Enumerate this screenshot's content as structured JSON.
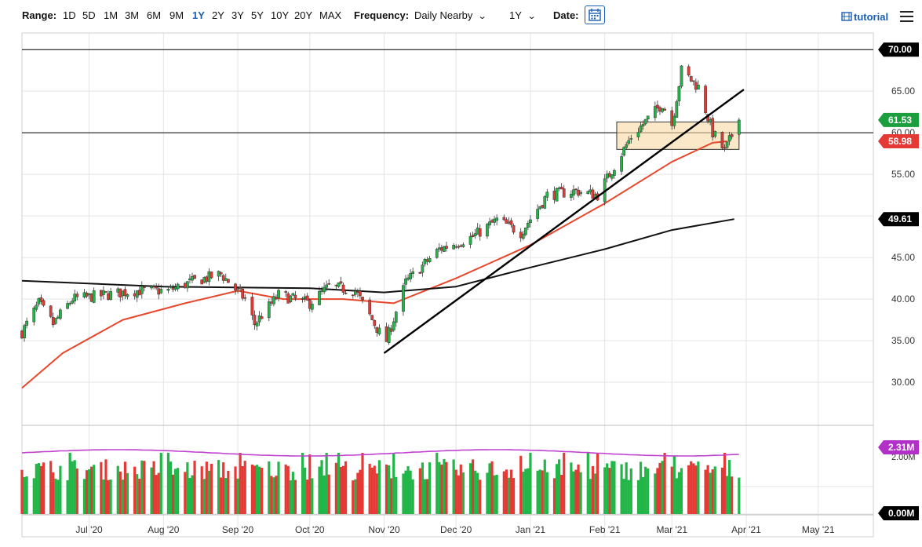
{
  "toolbar": {
    "range_label": "Range:",
    "ranges": [
      "1D",
      "5D",
      "1M",
      "3M",
      "6M",
      "9M",
      "1Y",
      "2Y",
      "3Y",
      "5Y",
      "10Y",
      "20Y",
      "MAX"
    ],
    "active_range": "1Y",
    "frequency_label": "Frequency:",
    "frequency_value": "Daily Nearby",
    "period_value": "1Y",
    "date_label": "Date:",
    "tutorial_label": "tutorial",
    "icons": [
      "calendar-icon",
      "chevron-down-icon",
      "film-icon",
      "menu-icon"
    ]
  },
  "chart_data": {
    "type": "candlestick",
    "y_axis": {
      "min": 25,
      "max": 72,
      "ticks": [
        30,
        35,
        40,
        45,
        50,
        55,
        60,
        65,
        70
      ],
      "tick_labels": [
        "30.00",
        "35.00",
        "40.00",
        "45.00",
        "50.00",
        "55.00",
        "60.00",
        "65.00",
        "70.00"
      ],
      "position": "right"
    },
    "x_axis": {
      "start_date": "2020-06-03",
      "end_date": "2021-05-24",
      "labels": [
        {
          "date": "2020-07-01",
          "text": "Jul '20"
        },
        {
          "date": "2020-08-01",
          "text": "Aug '20"
        },
        {
          "date": "2020-09-01",
          "text": "Sep '20"
        },
        {
          "date": "2020-10-01",
          "text": "Oct '20"
        },
        {
          "date": "2020-11-01",
          "text": "Nov '20"
        },
        {
          "date": "2020-12-01",
          "text": "Dec '20"
        },
        {
          "date": "2021-01-01",
          "text": "Jan '21"
        },
        {
          "date": "2021-02-01",
          "text": "Feb '21"
        },
        {
          "date": "2021-03-01",
          "text": "Mar '21"
        },
        {
          "date": "2021-04-01",
          "text": "Apr '21"
        },
        {
          "date": "2021-05-01",
          "text": "May '21"
        }
      ]
    },
    "grid": true,
    "price_anchors": [
      {
        "date": "2020-06-03",
        "close": 36.0
      },
      {
        "date": "2020-06-10",
        "close": 39.5
      },
      {
        "date": "2020-06-16",
        "close": 37.0
      },
      {
        "date": "2020-06-24",
        "close": 40.0
      },
      {
        "date": "2020-07-08",
        "close": 40.5
      },
      {
        "date": "2020-07-20",
        "close": 41.0
      },
      {
        "date": "2020-08-03",
        "close": 41.0
      },
      {
        "date": "2020-08-12",
        "close": 42.0
      },
      {
        "date": "2020-08-25",
        "close": 43.0
      },
      {
        "date": "2020-09-04",
        "close": 40.0
      },
      {
        "date": "2020-09-08",
        "close": 37.0
      },
      {
        "date": "2020-09-18",
        "close": 40.5
      },
      {
        "date": "2020-10-01",
        "close": 39.5
      },
      {
        "date": "2020-10-09",
        "close": 41.5
      },
      {
        "date": "2020-10-20",
        "close": 41.0
      },
      {
        "date": "2020-10-30",
        "close": 36.0
      },
      {
        "date": "2020-11-02",
        "close": 35.0
      },
      {
        "date": "2020-11-10",
        "close": 42.0
      },
      {
        "date": "2020-11-24",
        "close": 46.0
      },
      {
        "date": "2020-12-08",
        "close": 47.5
      },
      {
        "date": "2020-12-18",
        "close": 49.5
      },
      {
        "date": "2020-12-28",
        "close": 48.0
      },
      {
        "date": "2021-01-08",
        "close": 52.5
      },
      {
        "date": "2021-01-20",
        "close": 53.0
      },
      {
        "date": "2021-01-29",
        "close": 52.5
      },
      {
        "date": "2021-02-12",
        "close": 59.5
      },
      {
        "date": "2021-02-25",
        "close": 63.5
      },
      {
        "date": "2021-03-01",
        "close": 61.0
      },
      {
        "date": "2021-03-05",
        "close": 67.5
      },
      {
        "date": "2021-03-12",
        "close": 65.5
      },
      {
        "date": "2021-03-18",
        "close": 60.0
      },
      {
        "date": "2021-03-23",
        "close": 57.8
      },
      {
        "date": "2021-03-29",
        "close": 61.5
      }
    ],
    "moving_averages": [
      {
        "name": "MA-short",
        "color": "#e8472b",
        "points": [
          [
            "2020-06-03",
            29.3
          ],
          [
            "2020-06-20",
            33.5
          ],
          [
            "2020-07-15",
            37.5
          ],
          [
            "2020-08-10",
            39.5
          ],
          [
            "2020-09-01",
            41.0
          ],
          [
            "2020-09-20",
            40.0
          ],
          [
            "2020-10-15",
            40.0
          ],
          [
            "2020-11-05",
            39.5
          ],
          [
            "2020-12-01",
            42.5
          ],
          [
            "2021-01-01",
            46.5
          ],
          [
            "2021-02-01",
            51.5
          ],
          [
            "2021-03-01",
            56.5
          ],
          [
            "2021-03-18",
            58.8
          ],
          [
            "2021-03-24",
            58.98
          ]
        ]
      },
      {
        "name": "MA-long",
        "color": "#111111",
        "points": [
          [
            "2020-06-03",
            42.2
          ],
          [
            "2020-08-01",
            41.5
          ],
          [
            "2020-10-01",
            41.3
          ],
          [
            "2020-11-01",
            40.8
          ],
          [
            "2020-12-01",
            41.5
          ],
          [
            "2021-01-01",
            43.8
          ],
          [
            "2021-02-01",
            46.0
          ],
          [
            "2021-03-01",
            48.3
          ],
          [
            "2021-03-27",
            49.61
          ]
        ]
      }
    ],
    "horizontal_lines": [
      {
        "value": 70.0,
        "label": "70.00"
      },
      {
        "value": 60.0,
        "label": "60.00"
      }
    ],
    "trendline": {
      "from": [
        "2020-11-01",
        33.5
      ],
      "to": [
        "2021-03-31",
        65.2
      ]
    },
    "consolidation_box": {
      "from": "2021-02-06",
      "to": "2021-03-29",
      "low": 58.0,
      "high": 61.3
    },
    "price_badges": [
      {
        "value": 70.0,
        "label": "70.00",
        "color": "#000000"
      },
      {
        "value": 61.53,
        "label": "61.53",
        "color": "#1b9e3e"
      },
      {
        "value": 58.98,
        "label": "58.98",
        "color": "#e53935"
      },
      {
        "value": 49.61,
        "label": "49.61",
        "color": "#000000"
      }
    ],
    "volume": {
      "y_min_label": "0.00M",
      "y_ref_label": "2.00M",
      "ma_label": "2.31M",
      "ma_color": "#c040d0",
      "ma_badge_color": "#b030c8",
      "up_color": "#22b548",
      "down_color": "#e53935"
    }
  }
}
